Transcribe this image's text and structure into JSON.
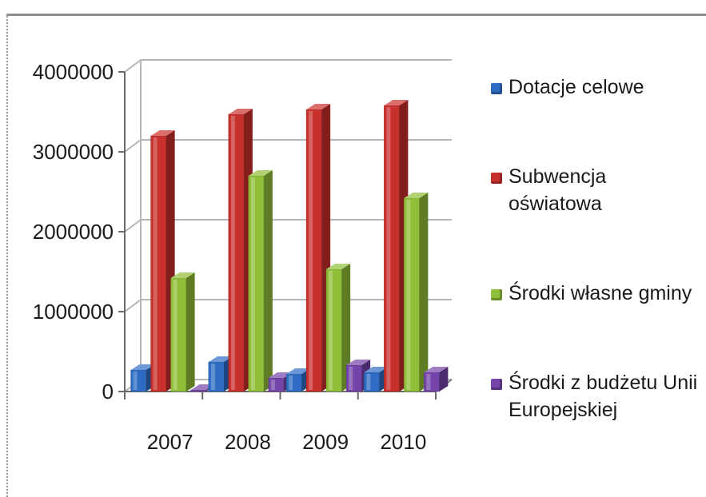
{
  "chart_data": {
    "type": "bar",
    "categories": [
      "2007",
      "2008",
      "2009",
      "2010"
    ],
    "series": [
      {
        "name": "Dotacje celowe",
        "values": [
          270000,
          370000,
          220000,
          240000
        ],
        "color": "#2e6cc4"
      },
      {
        "name": "Subwencja oświatowa",
        "values": [
          3200000,
          3470000,
          3530000,
          3580000
        ],
        "color": "#c8302c"
      },
      {
        "name": "Środki własne gminy",
        "values": [
          1420000,
          2700000,
          1530000,
          2420000
        ],
        "color": "#8fbe38"
      },
      {
        "name": "Środki z budżetu Unii Europejskiej",
        "values": [
          20000,
          170000,
          330000,
          240000
        ],
        "color": "#7444a8"
      }
    ],
    "yticks": [
      "4000000",
      "3000000",
      "2000000",
      "1000000",
      "0"
    ],
    "ylim": [
      0,
      4000000
    ],
    "grid": true,
    "legend_position": "right",
    "style": "3d clustered column"
  },
  "legend": {
    "items": [
      {
        "label": "Dotacje celowe",
        "color": "#2e6cc4"
      },
      {
        "label": "Subwencja oświatowa",
        "color": "#c8302c"
      },
      {
        "label": "Środki własne gminy",
        "color": "#8fbe38"
      },
      {
        "label": "Środki z budżetu Unii Europejskiej",
        "color": "#7444a8"
      }
    ]
  }
}
